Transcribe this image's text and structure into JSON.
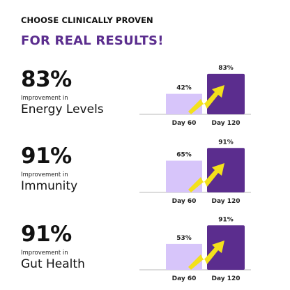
{
  "header": {
    "eyebrow": "CHOOSE CLINICALLY PROVEN",
    "headline": "FOR REAL RESULTS!"
  },
  "colors": {
    "headline": "#5b2d8e",
    "bar_day60": "#d7c5fa",
    "bar_day120": "#5b2d8e",
    "arrow": "#f3e11b",
    "baseline": "#b8b8b8"
  },
  "icons": [
    "zigzag-arrow-icon"
  ],
  "chart_data": [
    {
      "type": "bar",
      "categories": [
        "Day 60",
        "Day 120"
      ],
      "values": [
        42,
        83
      ],
      "data_labels": [
        "42%",
        "83%"
      ],
      "headline_value": "83%",
      "caption": "Improvement in",
      "metric": "Energy Levels",
      "ylim": [
        0,
        100
      ]
    },
    {
      "type": "bar",
      "categories": [
        "Day 60",
        "Day 120"
      ],
      "values": [
        65,
        91
      ],
      "data_labels": [
        "65%",
        "91%"
      ],
      "headline_value": "91%",
      "caption": "Improvement in",
      "metric": "Immunity",
      "ylim": [
        0,
        100
      ]
    },
    {
      "type": "bar",
      "categories": [
        "Day 60",
        "Day 120"
      ],
      "values": [
        53,
        91
      ],
      "data_labels": [
        "53%",
        "91%"
      ],
      "headline_value": "91%",
      "caption": "Improvement in",
      "metric": "Gut Health",
      "ylim": [
        0,
        100
      ]
    }
  ]
}
